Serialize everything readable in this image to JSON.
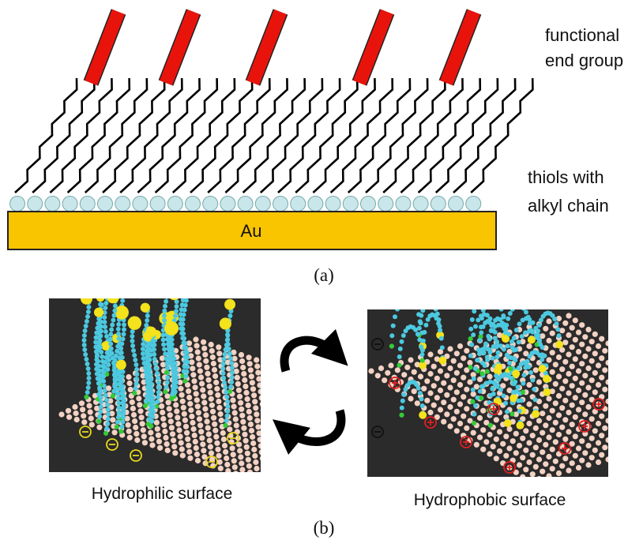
{
  "labels": {
    "functional_end_group": [
      "functional",
      "end group"
    ],
    "thiols": [
      "thiols with",
      "alkyl chain"
    ],
    "substrate": "Au",
    "panel_a": "(a)",
    "panel_b": "(b)",
    "hydrophilic": "Hydrophilic surface",
    "hydrophobic": "Hydrophobic surface"
  }
}
